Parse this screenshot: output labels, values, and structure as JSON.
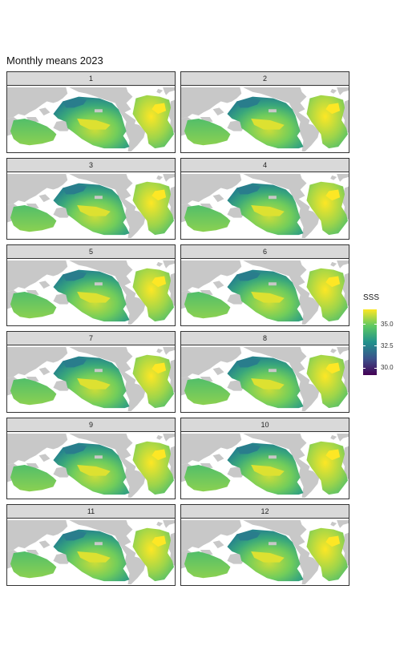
{
  "title": "Monthly means 2023",
  "panels": [
    {
      "label": "1"
    },
    {
      "label": "2"
    },
    {
      "label": "3"
    },
    {
      "label": "4"
    },
    {
      "label": "5"
    },
    {
      "label": "6"
    },
    {
      "label": "7"
    },
    {
      "label": "8"
    },
    {
      "label": "9"
    },
    {
      "label": "10"
    },
    {
      "label": "11"
    },
    {
      "label": "12"
    }
  ],
  "legend": {
    "title": "SSS",
    "ticks": [
      "35.0",
      "32.5",
      "30.0"
    ],
    "tick_values": [
      35.0,
      32.5,
      30.0
    ],
    "range": [
      29.2,
      36.7
    ],
    "palette": [
      "#440154",
      "#3b528b",
      "#21918c",
      "#5ec962",
      "#fde725"
    ]
  },
  "colors": {
    "land": "#c8c8c8",
    "panel_border": "#333333",
    "strip_background": "#d9d9d9"
  }
}
